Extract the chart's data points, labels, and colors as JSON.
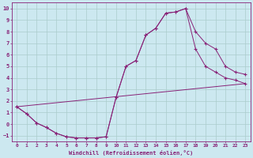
{
  "xlabel": "Windchill (Refroidissement éolien,°C)",
  "background_color": "#cce8f0",
  "grid_color": "#aacccc",
  "line_color": "#882277",
  "xlim": [
    -0.5,
    23.5
  ],
  "ylim": [
    -1.5,
    10.5
  ],
  "xticks": [
    0,
    1,
    2,
    3,
    4,
    5,
    6,
    7,
    8,
    9,
    10,
    11,
    12,
    13,
    14,
    15,
    16,
    17,
    18,
    19,
    20,
    21,
    22,
    23
  ],
  "yticks": [
    -1,
    0,
    1,
    2,
    3,
    4,
    5,
    6,
    7,
    8,
    9,
    10
  ],
  "line1_x": [
    0,
    1,
    2,
    3,
    4,
    5,
    6,
    7,
    8,
    9,
    10,
    11,
    12,
    13,
    14,
    15,
    16,
    17,
    18,
    19,
    20,
    21,
    22,
    23
  ],
  "line1_y": [
    1.5,
    0.9,
    0.1,
    -0.3,
    -0.8,
    -1.1,
    -1.2,
    -1.2,
    -1.2,
    -1.1,
    2.3,
    5.0,
    5.5,
    7.7,
    8.3,
    9.6,
    9.7,
    10.0,
    8.0,
    7.0,
    6.5,
    5.0,
    4.5,
    4.3
  ],
  "line2_x": [
    0,
    1,
    2,
    3,
    4,
    5,
    6,
    7,
    8,
    9,
    10,
    11,
    12,
    13,
    14,
    15,
    16,
    17,
    18,
    19,
    20,
    21,
    22,
    23
  ],
  "line2_y": [
    1.5,
    0.9,
    0.1,
    -0.3,
    -0.8,
    -1.1,
    -1.2,
    -1.2,
    -1.2,
    -1.1,
    2.3,
    5.0,
    5.5,
    7.7,
    8.3,
    9.6,
    9.7,
    10.0,
    6.5,
    5.0,
    4.5,
    4.0,
    3.8,
    3.5
  ],
  "line3_x": [
    0,
    23
  ],
  "line3_y": [
    1.5,
    3.5
  ]
}
